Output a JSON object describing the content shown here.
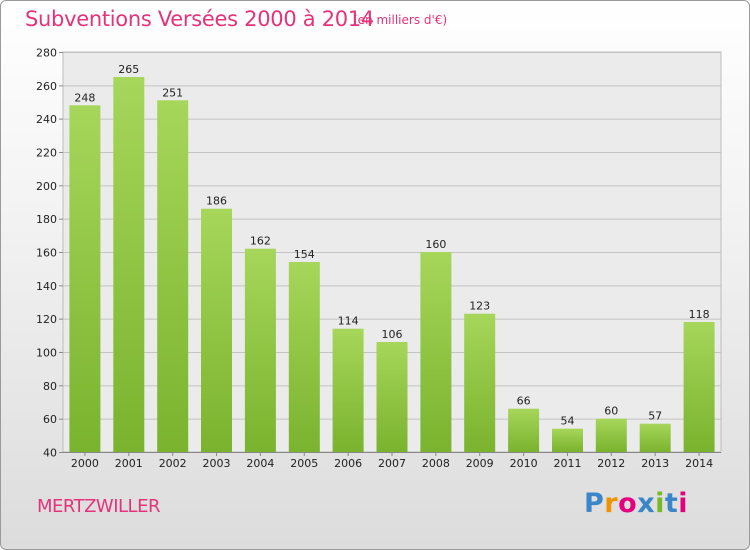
{
  "chart_data": {
    "type": "bar",
    "title": "Subventions Versées 2000 à 2014",
    "subtitle": "(en milliers d'€)",
    "categories": [
      "2000",
      "2001",
      "2002",
      "2003",
      "2004",
      "2005",
      "2006",
      "2007",
      "2008",
      "2009",
      "2010",
      "2011",
      "2012",
      "2013",
      "2014"
    ],
    "values": [
      248,
      265,
      251,
      186,
      162,
      154,
      114,
      106,
      160,
      123,
      66,
      54,
      60,
      57,
      118
    ],
    "ylim": [
      40,
      280
    ],
    "yticks": [
      40,
      60,
      80,
      100,
      120,
      140,
      160,
      180,
      200,
      220,
      240,
      260,
      280
    ],
    "grid": true,
    "xlabel": "",
    "ylabel": "",
    "bar_color": "#7ab32e",
    "bar_color_light": "#a6d65a"
  },
  "commune": "MERTZWILLER",
  "logo": {
    "text": "Proxiti",
    "letter_colors": [
      "#3a86c8",
      "#f39200",
      "#e4007e",
      "#3a86c8",
      "#78b928",
      "#3a86c8",
      "#e4007e"
    ]
  },
  "colors": {
    "accent": "#e5337a"
  }
}
